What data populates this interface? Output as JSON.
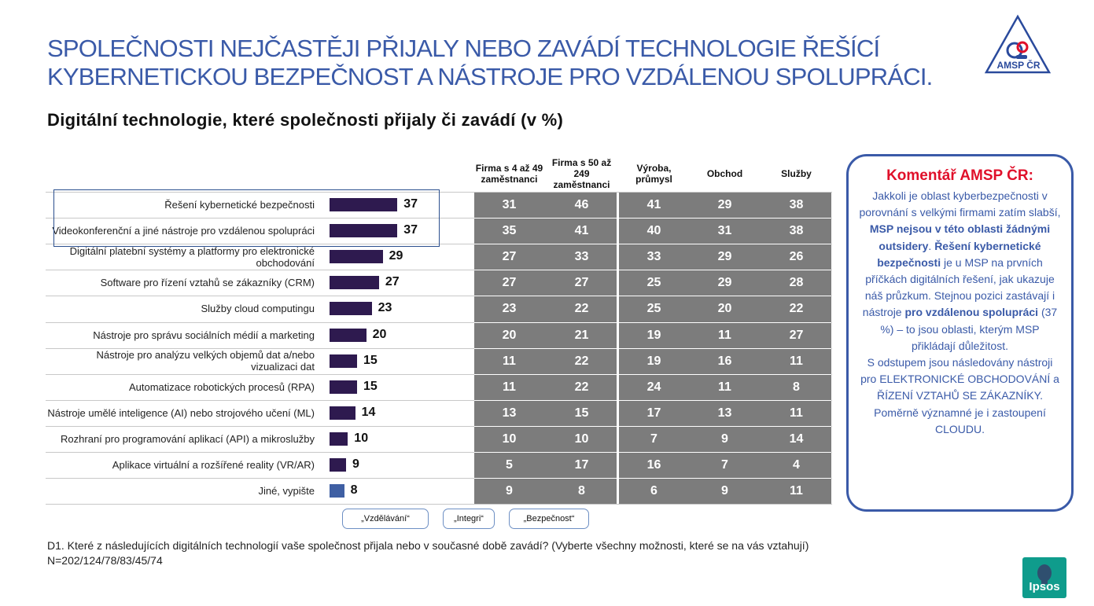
{
  "title_lines": [
    "SPOLEČNOSTI NEJČASTĚJI PŘIJALY NEBO ZAVÁDÍ TECHNOLOGIE ŘEŠÍCÍ",
    "KYBERNETICKOU BEZPEČNOST A NÁSTROJE PRO VZDÁLENOU SPOLUPRÁCI."
  ],
  "logo_text": "AMSP ČR",
  "logo_icon": "amsp-triangle-logo",
  "chart_data": {
    "type": "bar",
    "orientation": "horizontal",
    "title": "Digitální technologie, které společnosti přijaly či zavádí (v %)",
    "categories": [
      "Řešení kybernetické bezpečnosti",
      "Videokonferenční a jiné nástroje pro vzdálenou spolupráci",
      "Digitální platební systémy a platformy pro elektronické obchodování",
      "Software pro řízení vztahů se zákazníky (CRM)",
      "Služby cloud computingu",
      "Nástroje pro správu sociálních médií a marketing",
      "Nástroje pro analýzu velkých objemů dat a/nebo vizualizaci dat",
      "Automatizace robotických procesů (RPA)",
      "Nástroje umělé inteligence (AI) nebo strojového učení (ML)",
      "Rozhraní pro programování aplikací (API) a mikroslužby",
      "Aplikace virtuální a rozšířené reality (VR/AR)",
      "Jiné, vypište"
    ],
    "values": [
      37,
      37,
      29,
      27,
      23,
      20,
      15,
      15,
      14,
      10,
      9,
      8
    ],
    "bar_color": "#2e1a4f",
    "last_bar_color": "#3f5fa3",
    "table": {
      "columns": [
        "Firma s 4 až 49 zaměstnanci",
        "Firma s 50 až 249 zaměstnanci",
        "Výroba, průmysl",
        "Obchod",
        "Služby"
      ],
      "rows": [
        [
          31,
          46,
          41,
          29,
          38
        ],
        [
          35,
          41,
          40,
          31,
          38
        ],
        [
          27,
          33,
          33,
          29,
          26
        ],
        [
          27,
          27,
          25,
          29,
          28
        ],
        [
          23,
          22,
          25,
          20,
          22
        ],
        [
          20,
          21,
          19,
          11,
          27
        ],
        [
          11,
          22,
          19,
          16,
          11
        ],
        [
          11,
          22,
          24,
          11,
          8
        ],
        [
          13,
          15,
          17,
          13,
          11
        ],
        [
          10,
          10,
          7,
          9,
          14
        ],
        [
          5,
          17,
          16,
          7,
          4
        ],
        [
          9,
          8,
          6,
          9,
          11
        ]
      ],
      "cell_color": "#7c7c7c"
    }
  },
  "callouts": [
    "„Vzdělávání“",
    "„Integri“",
    "„Bezpečnost“"
  ],
  "comment": {
    "heading": "Komentář AMSP ČR:",
    "segments": [
      {
        "text": "Jakkoli je oblast kyberbezpečnosti v porovnání s velkými firmami zatím slabší, ",
        "bold": false
      },
      {
        "text": "MSP nejsou v této oblasti žádnými outsidery",
        "bold": true
      },
      {
        "text": ". ",
        "bold": false
      },
      {
        "text": "Řešení kybernetické bezpečnosti",
        "bold": true
      },
      {
        "text": " je u MSP na prvních příčkách digitálních řešení, jak ukazuje náš průzkum. Stejnou pozici zastávají i nástroje ",
        "bold": false
      },
      {
        "text": "pro vzdálenou spolupráci",
        "bold": true
      },
      {
        "text": " (37 %) – to jsou oblasti, kterým MSP přikládají důležitost.",
        "bold": false
      },
      {
        "text": "S odstupem jsou následovány nástroji pro ELEKTRONICKÉ OBCHODOVÁNÍ  a ŘÍZENÍ VZTAHŮ SE ZÁKAZNÍKY. Poměrně významné je i zastoupení CLOUDU.",
        "bold": false,
        "newline": true
      }
    ],
    "heading_color": "#e0102a",
    "text_color": "#3a5aa8"
  },
  "footnote": {
    "question": "D1. Které z následujících digitálních technologií vaše společnost přijala nebo v současné době zavádí? (Vyberte všechny možnosti, které se na vás vztahují)",
    "sample": "N=202/124/78/83/45/74"
  },
  "ipsos_text": "Ipsos",
  "ipsos_icon": "ipsos-head-icon",
  "colors": {
    "title": "#3a5aa8",
    "ipsos": "#0f9c8c"
  }
}
